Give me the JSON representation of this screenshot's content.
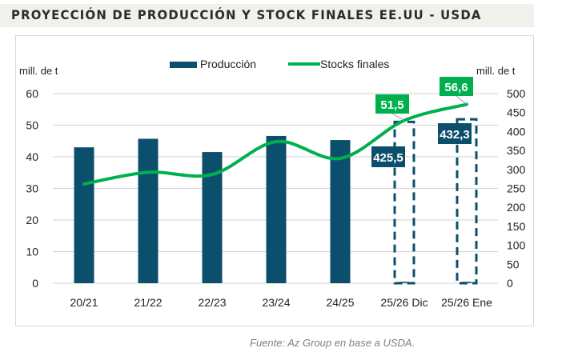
{
  "title": "PROYECCIÓN DE PRODUCCIÓN Y STOCK FINALES EE.UU - USDA",
  "source": "Fuente: Az Group en base a USDA.",
  "colors": {
    "production": "#0b4f6c",
    "stocks": "#00b04f",
    "grid": "#d9d9d9"
  },
  "chart_data": {
    "type": "bar+line",
    "categories": [
      "20/21",
      "21/22",
      "22/23",
      "23/24",
      "24/25",
      "25/26 Dic",
      "25/26 Ene"
    ],
    "legend": [
      "Producción",
      "Stocks finales"
    ],
    "legend_position": "top",
    "ylabel_left": "mill. de t",
    "ylabel_right": "mill. de t",
    "ylim_left": [
      0,
      60
    ],
    "yticks_left": [
      "0",
      "10",
      "20",
      "30",
      "40",
      "50",
      "60"
    ],
    "ylim_right": [
      0,
      500
    ],
    "yticks_right": [
      "0",
      "50",
      "100",
      "150",
      "200",
      "250",
      "300",
      "350",
      "400",
      "450",
      "500"
    ],
    "series": [
      {
        "name": "Producción",
        "type": "bar",
        "axis": "left",
        "values": [
          43,
          45.7,
          41.5,
          46.6,
          45.3,
          null,
          null
        ]
      },
      {
        "name": "Producción (proyección)",
        "type": "dashed-bar",
        "axis": "right",
        "values": [
          null,
          null,
          null,
          null,
          null,
          425.5,
          432.3
        ],
        "labels": [
          "",
          "",
          "",
          "",
          "",
          "425,5",
          "432,3"
        ]
      },
      {
        "name": "Stocks finales",
        "type": "line",
        "axis": "left",
        "values": [
          31.4,
          35.1,
          34.4,
          44.8,
          39.5,
          51.5,
          56.6
        ],
        "labels": [
          "",
          "",
          "",
          "",
          "",
          "51,5",
          "56,6"
        ]
      }
    ]
  }
}
